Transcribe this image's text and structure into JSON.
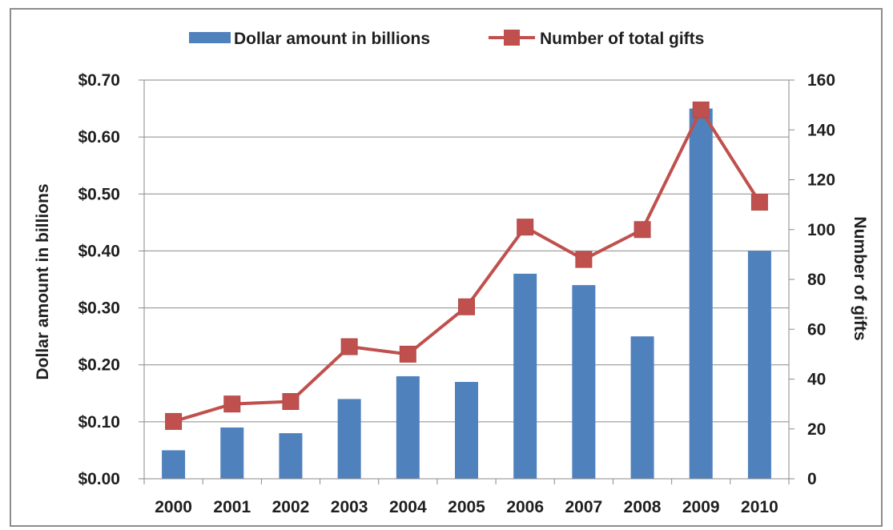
{
  "chart_data": {
    "type": "bar",
    "categories": [
      "2000",
      "2001",
      "2002",
      "2003",
      "2004",
      "2005",
      "2006",
      "2007",
      "2008",
      "2009",
      "2010"
    ],
    "series": [
      {
        "name": "Dollar amount in billions",
        "type": "bar",
        "axis": "left",
        "color": "#4f81bd",
        "values": [
          0.05,
          0.09,
          0.08,
          0.14,
          0.18,
          0.17,
          0.36,
          0.34,
          0.25,
          0.65,
          0.4
        ]
      },
      {
        "name": "Number of total gifts",
        "type": "line",
        "axis": "right",
        "color": "#c0504d",
        "marker": "square",
        "values": [
          23,
          30,
          31,
          53,
          50,
          69,
          101,
          88,
          100,
          148,
          111
        ]
      }
    ],
    "ylabel": "Dollar amount in billions",
    "y2label": "Number of gifts",
    "ylim": [
      0,
      0.7
    ],
    "y2lim": [
      0,
      160
    ],
    "yticks": [
      "$0.00",
      "$0.10",
      "$0.20",
      "$0.30",
      "$0.40",
      "$0.50",
      "$0.60",
      "$0.70"
    ],
    "y2ticks": [
      "0",
      "20",
      "40",
      "60",
      "80",
      "100",
      "120",
      "140",
      "160"
    ],
    "grid": true,
    "legend_position": "top"
  }
}
